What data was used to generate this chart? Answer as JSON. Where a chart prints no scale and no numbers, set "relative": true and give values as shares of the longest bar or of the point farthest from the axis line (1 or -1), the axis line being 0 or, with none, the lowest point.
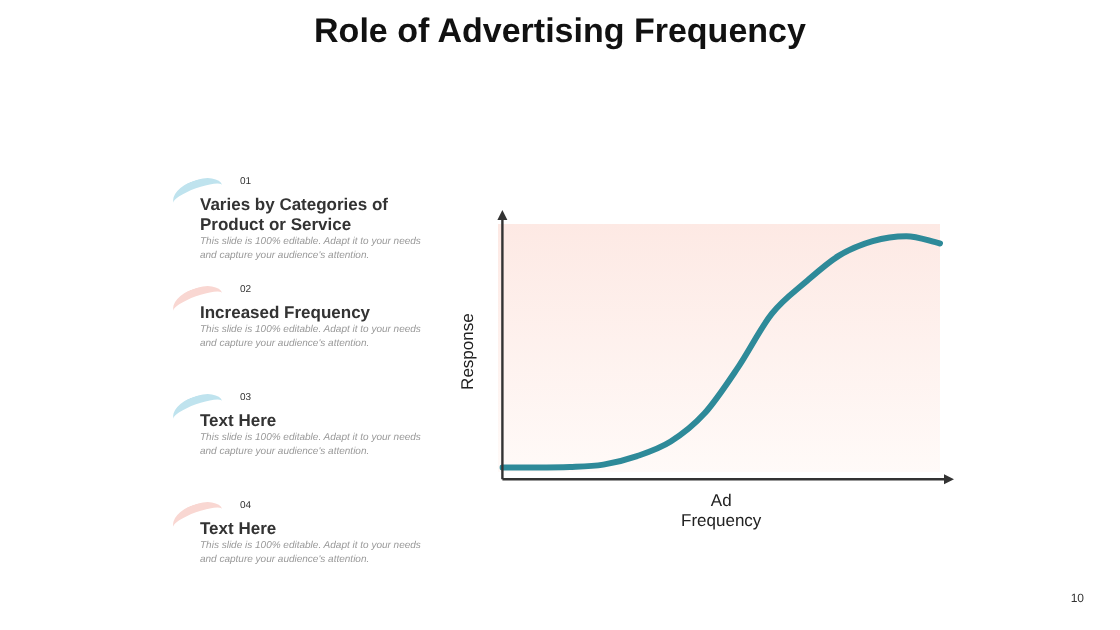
{
  "chart_data": {
    "type": "line",
    "title": "Role of Advertising Frequency",
    "xlabel": "Ad Frequency",
    "ylabel": "Response",
    "relative": true,
    "grid": false,
    "legend": false,
    "marker": "none",
    "categories": [
      null,
      null,
      null,
      null,
      null,
      null,
      null,
      null,
      null,
      null,
      null,
      null,
      null,
      null
    ],
    "series": [
      {
        "color": "#2e8a99",
        "values": [
          0.048,
          0.048,
          0.05,
          0.06,
          0.095,
          0.155,
          0.27,
          0.46,
          0.68,
          0.81,
          0.92,
          0.98,
          1.0,
          0.97
        ]
      }
    ],
    "annotations": [
      "01",
      "Varies by Categories of Product or Service",
      "This slide is 100% editable. Adapt it to your needs and capture your audience's attention.",
      "02",
      "Increased Frequency",
      "This slide is 100% editable. Adapt it to your needs and capture your audience's attention.",
      "03",
      "Text Here",
      "This slide is 100% editable. Adapt it to your needs and capture your audience's attention.",
      "04",
      "Text Here",
      "This slide is 100% editable. Adapt it to your needs and capture your audience's attention.",
      "10"
    ]
  }
}
